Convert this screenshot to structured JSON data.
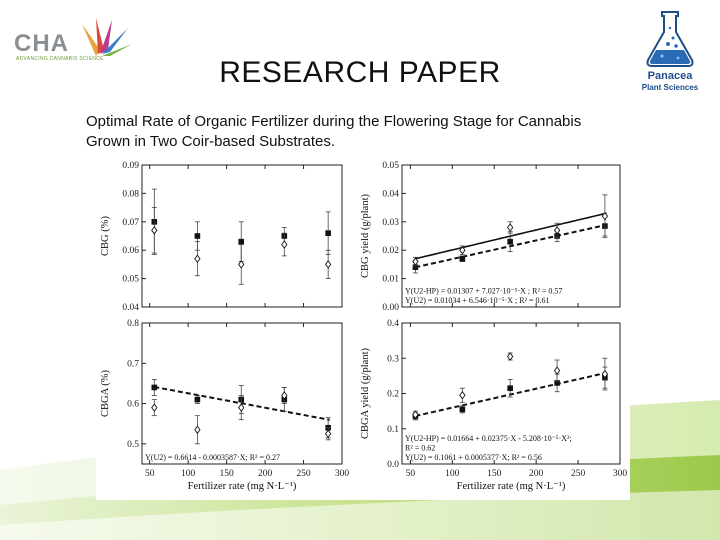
{
  "slide": {
    "title": "RESEARCH PAPER",
    "subtitle_line1": "Optimal Rate of Organic Fertilizer during the Flowering Stage for Cannabis",
    "subtitle_line2": "Grown in Two Coir-based Substrates."
  },
  "logos": {
    "left_wordmark": "CHA",
    "left_tagline": "ADVANCING CANNABIS SCIENCE",
    "right_line1": "Panacea",
    "right_line2": "Plant Sciences"
  },
  "colors": {
    "accent_green": "#9cc94a",
    "light_green": "#dcedc0",
    "flask_blue": "#2a6bb5",
    "brand_navy": "#1f4d8c"
  },
  "chart_data": [
    {
      "type": "scatter",
      "panel": "top-left",
      "ylabel": "CBG (%)",
      "xlabel": "",
      "xlim": [
        40,
        300
      ],
      "ylim": [
        0.04,
        0.09
      ],
      "yticks": [
        "0.04",
        "0.05",
        "0.06",
        "0.07",
        "0.08",
        "0.09"
      ],
      "xticks": [
        50,
        100,
        150,
        200,
        250,
        300
      ],
      "show_xtick_labels": false,
      "series": [
        {
          "marker": "filled-square",
          "x": [
            56,
            112,
            169,
            225,
            282
          ],
          "y": [
            0.07,
            0.065,
            0.063,
            0.065,
            0.066
          ],
          "err": [
            0.0115,
            0.005,
            0.007,
            0.003,
            0.0075
          ]
        },
        {
          "marker": "open-diamond",
          "x": [
            56,
            112,
            169,
            225,
            282
          ],
          "y": [
            0.067,
            0.057,
            0.055,
            0.062,
            0.055
          ],
          "err": [
            0.008,
            0.006,
            0.007,
            0.004,
            0.005
          ]
        }
      ],
      "fits": []
    },
    {
      "type": "scatter",
      "panel": "top-right",
      "ylabel": "CBG yield (g/plant)",
      "xlabel": "",
      "xlim": [
        40,
        300
      ],
      "ylim": [
        0.0,
        0.05
      ],
      "yticks": [
        "0.00",
        "0.01",
        "0.02",
        "0.03",
        "0.04",
        "0.05"
      ],
      "xticks": [
        50,
        100,
        150,
        200,
        250,
        300
      ],
      "show_xtick_labels": false,
      "series": [
        {
          "marker": "filled-square",
          "x": [
            56,
            112,
            169,
            225,
            282
          ],
          "y": [
            0.014,
            0.017,
            0.023,
            0.025,
            0.0285
          ],
          "err": [
            0.002,
            0.001,
            0.0035,
            0.002,
            0.0035
          ]
        },
        {
          "marker": "open-diamond",
          "x": [
            56,
            112,
            169,
            225,
            282
          ],
          "y": [
            0.016,
            0.02,
            0.028,
            0.027,
            0.032
          ],
          "err": [
            0.0015,
            0.0015,
            0.002,
            0.0025,
            0.0075
          ]
        }
      ],
      "fits": [
        {
          "style": "solid",
          "kind": "linear",
          "a": 0.01307,
          "b": 7.027e-05
        },
        {
          "style": "dashed",
          "kind": "linear",
          "a": 0.01034,
          "b": 6.546e-05
        }
      ],
      "equations": [
        "Y(U2-HP) = 0.01307 + 7.027·10⁻⁵·X ; R² = 0.57",
        "Y(U2) = 0.01034 + 6.546·10⁻⁵·X ; R² = 0.61"
      ]
    },
    {
      "type": "scatter",
      "panel": "bottom-left",
      "ylabel": "CBGA (%)",
      "xlabel": "Fertilizer rate (mg N·L⁻¹)",
      "xlim": [
        40,
        300
      ],
      "ylim": [
        0.45,
        0.8
      ],
      "yticks": [
        "0.5",
        "0.6",
        "0.7",
        "0.8"
      ],
      "ytick_values": [
        0.5,
        0.6,
        0.7,
        0.8
      ],
      "xticks": [
        50,
        100,
        150,
        200,
        250,
        300
      ],
      "show_xtick_labels": true,
      "series": [
        {
          "marker": "filled-square",
          "x": [
            56,
            112,
            169,
            225,
            282
          ],
          "y": [
            0.64,
            0.61,
            0.61,
            0.61,
            0.54
          ],
          "err": [
            0.02,
            0.01,
            0.035,
            0.03,
            0.025
          ]
        },
        {
          "marker": "open-diamond",
          "x": [
            56,
            112,
            169,
            225,
            282
          ],
          "y": [
            0.59,
            0.535,
            0.59,
            0.62,
            0.525
          ],
          "err": [
            0.02,
            0.035,
            0.03,
            0.02,
            0.015
          ]
        }
      ],
      "fits": [
        {
          "style": "dashed",
          "kind": "linear",
          "a": 0.6614,
          "b": -0.0003587
        }
      ],
      "equations": [
        "Y(U2) = 0.6614 - 0.0003587·X; R² = 0.27"
      ]
    },
    {
      "type": "scatter",
      "panel": "bottom-right",
      "ylabel": "CBGA yield (g/plant)",
      "xlabel": "Fertilizer rate (mg N·L⁻¹)",
      "xlim": [
        40,
        300
      ],
      "ylim": [
        0.0,
        0.4
      ],
      "yticks": [
        "0.0",
        "0.1",
        "0.2",
        "0.3",
        "0.4"
      ],
      "xticks": [
        50,
        100,
        150,
        200,
        250,
        300
      ],
      "show_xtick_labels": true,
      "series": [
        {
          "marker": "filled-square",
          "x": [
            56,
            112,
            169,
            225,
            282
          ],
          "y": [
            0.135,
            0.155,
            0.215,
            0.23,
            0.245
          ],
          "err": [
            0.01,
            0.01,
            0.025,
            0.025,
            0.03
          ]
        },
        {
          "marker": "open-diamond",
          "x": [
            56,
            112,
            169,
            225,
            282
          ],
          "y": [
            0.14,
            0.195,
            0.305,
            0.265,
            0.255
          ],
          "err": [
            0.01,
            0.02,
            0.01,
            0.03,
            0.045
          ]
        }
      ],
      "fits": [
        {
          "style": "solid",
          "kind": "quadratic",
          "a": 0.01664,
          "b": 0.02375,
          "c": -5.208e-05
        },
        {
          "style": "dashed",
          "kind": "linear",
          "a": 0.1061,
          "b": 0.0005377
        }
      ],
      "equations": [
        "Y(U2-HP) = 0.01664 + 0.02375·X - 5.208·10⁻⁵·X²;",
        "R² = 0.62",
        "Y(U2) = 0.1061 + 0.0005377·X; R² = 0.56"
      ]
    }
  ]
}
